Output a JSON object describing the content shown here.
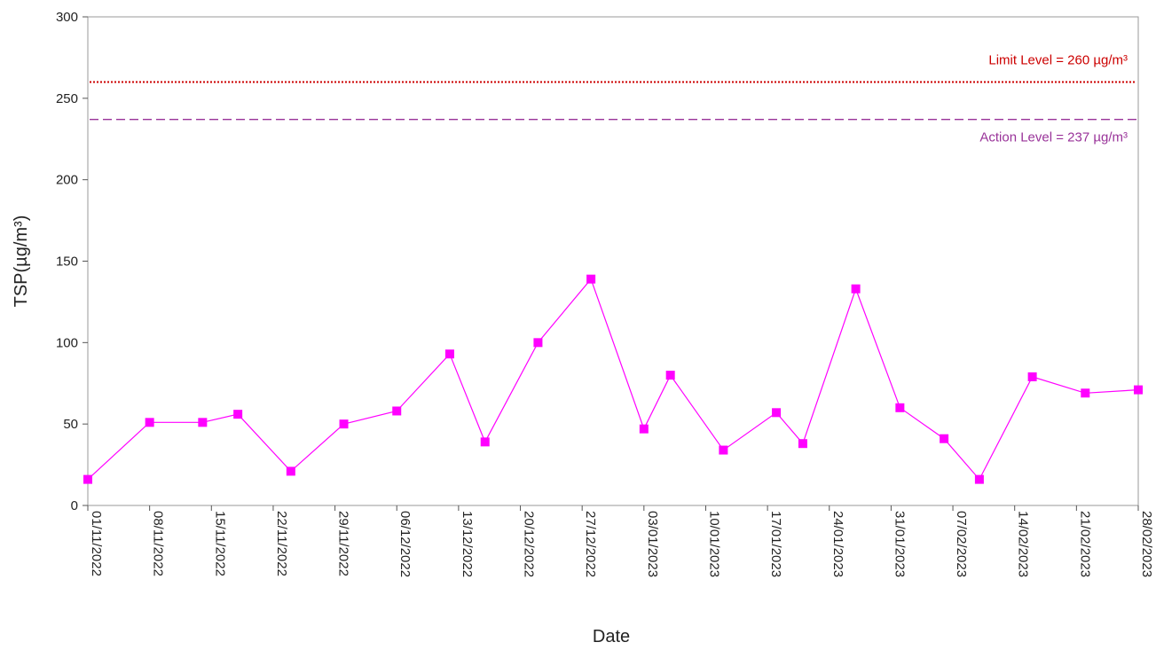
{
  "chart_data": {
    "type": "line",
    "title": "",
    "xlabel": "Date",
    "ylabel": "TSP(µg/m³)",
    "ylim": [
      0,
      300
    ],
    "yticks": [
      0,
      50,
      100,
      150,
      200,
      250,
      300
    ],
    "xlim": [
      "2022-11-01",
      "2023-02-28"
    ],
    "xtick_labels": [
      "01/11/2022",
      "08/11/2022",
      "15/11/2022",
      "22/11/2022",
      "29/11/2022",
      "06/12/2022",
      "13/12/2022",
      "20/12/2022",
      "27/12/2022",
      "03/01/2023",
      "10/01/2023",
      "17/01/2023",
      "24/01/2023",
      "31/01/2023",
      "07/02/2023",
      "14/02/2023",
      "21/02/2023",
      "28/02/2023"
    ],
    "grid": false,
    "series": [
      {
        "color": "#ff00ff",
        "marker": "square",
        "points": [
          {
            "x": "2022-11-01",
            "y": 16
          },
          {
            "x": "2022-11-08",
            "y": 51
          },
          {
            "x": "2022-11-14",
            "y": 51
          },
          {
            "x": "2022-11-18",
            "y": 56
          },
          {
            "x": "2022-11-24",
            "y": 21
          },
          {
            "x": "2022-11-30",
            "y": 50
          },
          {
            "x": "2022-12-06",
            "y": 58
          },
          {
            "x": "2022-12-12",
            "y": 93
          },
          {
            "x": "2022-12-16",
            "y": 39
          },
          {
            "x": "2022-12-22",
            "y": 100
          },
          {
            "x": "2022-12-28",
            "y": 139
          },
          {
            "x": "2023-01-03",
            "y": 47
          },
          {
            "x": "2023-01-06",
            "y": 80
          },
          {
            "x": "2023-01-12",
            "y": 34
          },
          {
            "x": "2023-01-18",
            "y": 57
          },
          {
            "x": "2023-01-21",
            "y": 38
          },
          {
            "x": "2023-01-27",
            "y": 133
          },
          {
            "x": "2023-02-01",
            "y": 60
          },
          {
            "x": "2023-02-06",
            "y": 41
          },
          {
            "x": "2023-02-10",
            "y": 16
          },
          {
            "x": "2023-02-16",
            "y": 79
          },
          {
            "x": "2023-02-22",
            "y": 69
          },
          {
            "x": "2023-02-28",
            "y": 71
          }
        ]
      }
    ],
    "reference_lines": [
      {
        "label": "Limit Level  = 260 µg/m³",
        "y": 260,
        "color": "#cc0000",
        "style": "dotted"
      },
      {
        "label": "Action Level  = 237 µg/m³",
        "y": 237,
        "color": "#993399",
        "style": "dashed"
      }
    ]
  }
}
